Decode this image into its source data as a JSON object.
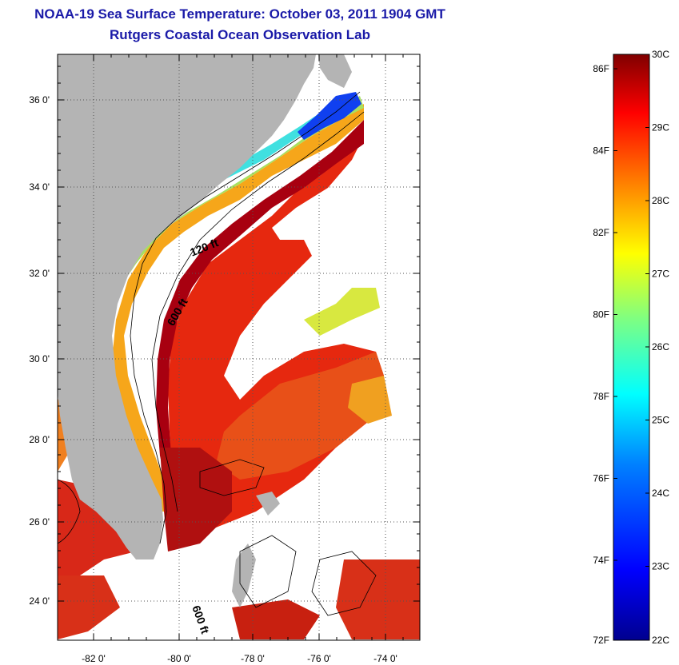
{
  "title": "NOAA-19 Sea Surface Temperature:  October 03, 2011 1904 GMT",
  "subtitle": "Rutgers Coastal Ocean Observation Lab",
  "map": {
    "lat_labels": [
      {
        "value": 36,
        "text": "36 0'"
      },
      {
        "value": 34,
        "text": "34 0'"
      },
      {
        "value": 32,
        "text": "32 0'"
      },
      {
        "value": 30,
        "text": "30 0'"
      },
      {
        "value": 28,
        "text": "28 0'"
      },
      {
        "value": 26,
        "text": "26 0'"
      },
      {
        "value": 24,
        "text": "24 0'"
      }
    ],
    "lon_labels": [
      {
        "value": -82,
        "text": "-82 0'"
      },
      {
        "value": -80,
        "text": "-80 0'"
      },
      {
        "value": -78,
        "text": "-78 0'"
      },
      {
        "value": -76,
        "text": "-76 0'"
      },
      {
        "value": -74,
        "text": "-74 0'"
      }
    ],
    "lat_range": [
      23,
      37.2
    ],
    "lon_range": [
      -83,
      -73.3
    ],
    "contour_labels": [
      {
        "text": "120 ft",
        "lon": -79.4,
        "lat": 32.3
      },
      {
        "text": "600 ft",
        "lon": -79.9,
        "lat": 30.6
      },
      {
        "text": "600 ft",
        "lon": -79.4,
        "lat": 23.8
      }
    ],
    "colors": {
      "land": "#b4b4b4",
      "no_data": "#ffffff"
    }
  },
  "colorbar": {
    "fahrenheit_labels": [
      "86F",
      "84F",
      "82F",
      "80F",
      "78F",
      "76F",
      "74F",
      "72F"
    ],
    "celsius_labels": [
      "30C",
      "29C",
      "28C",
      "27C",
      "26C",
      "25C",
      "24C",
      "23C",
      "22C"
    ],
    "range_c": [
      22,
      30
    ],
    "colormap": [
      "#00008f",
      "#0000ff",
      "#0080ff",
      "#00ffff",
      "#80ff80",
      "#ffff00",
      "#ff8000",
      "#ff0000",
      "#800000"
    ]
  }
}
